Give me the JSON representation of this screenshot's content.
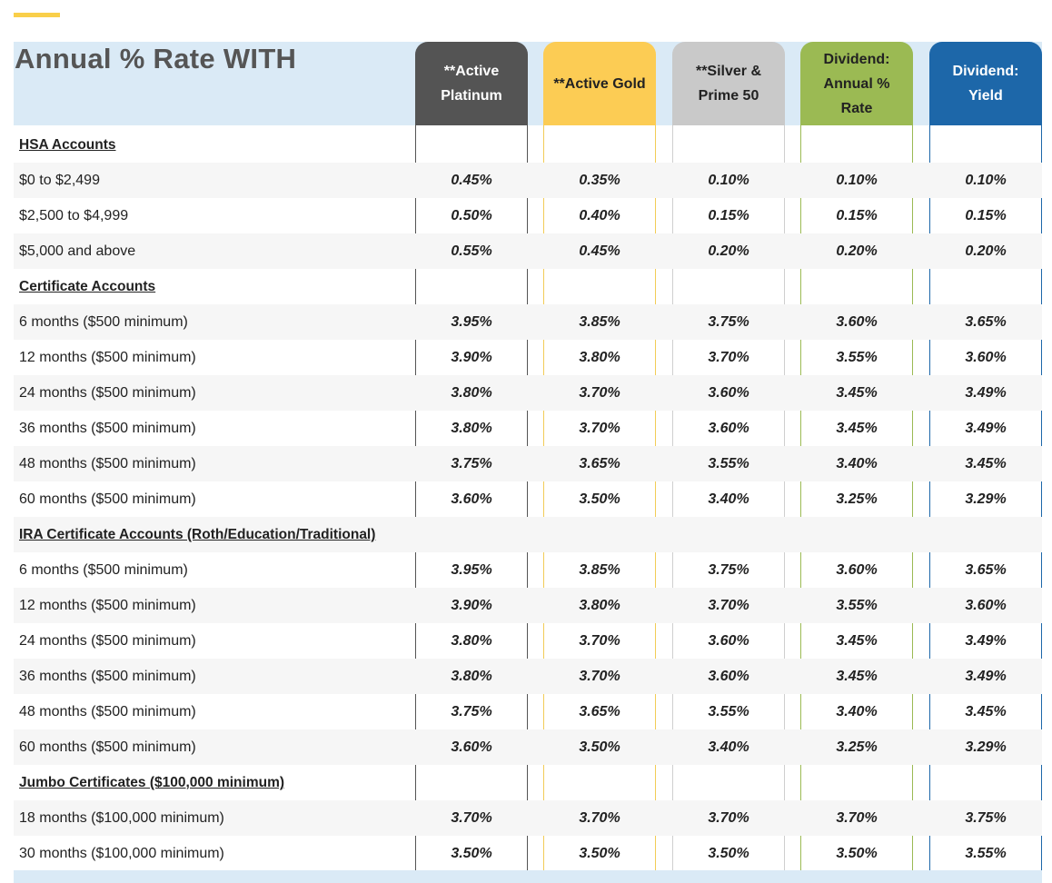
{
  "colors": {
    "accent": "#f9cf4a",
    "header_band": "#daeaf6",
    "title_text": "#555555",
    "platinum": "#545454",
    "gold": "#fccc54",
    "silver": "#c9c9c9",
    "dividend_rate": "#9bba53",
    "dividend_yield": "#1d67a9"
  },
  "title": "Annual % Rate WITH",
  "columns": [
    {
      "label": "**Active Platinum",
      "bg": "#545454",
      "fg": "#ffffff",
      "line": "#545454"
    },
    {
      "label": "**Active Gold",
      "bg": "#fccc54",
      "fg": "#222222",
      "line": "#f2cc57"
    },
    {
      "label": "**Silver & Prime 50",
      "bg": "#c9c9c9",
      "fg": "#222222",
      "line": "#cfcfcf"
    },
    {
      "label": "Dividend: Annual % Rate",
      "bg": "#9bba53",
      "fg": "#222222",
      "line": "#9bba53"
    },
    {
      "label": "Dividend: Yield",
      "bg": "#1d67a9",
      "fg": "#ffffff",
      "line": "#1d67a9"
    }
  ],
  "rows": [
    {
      "label": "HSA Accounts",
      "section": true
    },
    {
      "label": "$0 to $2,499",
      "values": [
        "0.45%",
        "0.35%",
        "0.10%",
        "0.10%",
        "0.10%"
      ]
    },
    {
      "label": "$2,500 to $4,999",
      "values": [
        "0.50%",
        "0.40%",
        "0.15%",
        "0.15%",
        "0.15%"
      ]
    },
    {
      "label": "$5,000 and above",
      "values": [
        "0.55%",
        "0.45%",
        "0.20%",
        "0.20%",
        "0.20%"
      ]
    },
    {
      "label": "Certificate Accounts",
      "section": true
    },
    {
      "label": "6 months ($500 minimum)",
      "values": [
        "3.95%",
        "3.85%",
        "3.75%",
        "3.60%",
        "3.65%"
      ]
    },
    {
      "label": "12 months ($500 minimum)",
      "values": [
        "3.90%",
        "3.80%",
        "3.70%",
        "3.55%",
        "3.60%"
      ]
    },
    {
      "label": "24 months ($500 minimum)",
      "values": [
        "3.80%",
        "3.70%",
        "3.60%",
        "3.45%",
        "3.49%"
      ]
    },
    {
      "label": "36 months ($500 minimum)",
      "values": [
        "3.80%",
        "3.70%",
        "3.60%",
        "3.45%",
        "3.49%"
      ]
    },
    {
      "label": "48 months ($500 minimum)",
      "values": [
        "3.75%",
        "3.65%",
        "3.55%",
        "3.40%",
        "3.45%"
      ]
    },
    {
      "label": "60 months ($500 minimum)",
      "values": [
        "3.60%",
        "3.50%",
        "3.40%",
        "3.25%",
        "3.29%"
      ]
    },
    {
      "label": "IRA Certificate Accounts (Roth/Education/Traditional)",
      "section": true
    },
    {
      "label": "6 months ($500 minimum)",
      "values": [
        "3.95%",
        "3.85%",
        "3.75%",
        "3.60%",
        "3.65%"
      ]
    },
    {
      "label": "12 months ($500 minimum)",
      "values": [
        "3.90%",
        "3.80%",
        "3.70%",
        "3.55%",
        "3.60%"
      ]
    },
    {
      "label": "24 months ($500 minimum)",
      "values": [
        "3.80%",
        "3.70%",
        "3.60%",
        "3.45%",
        "3.49%"
      ]
    },
    {
      "label": "36 months ($500 minimum)",
      "values": [
        "3.80%",
        "3.70%",
        "3.60%",
        "3.45%",
        "3.49%"
      ]
    },
    {
      "label": "48 months ($500 minimum)",
      "values": [
        "3.75%",
        "3.65%",
        "3.55%",
        "3.40%",
        "3.45%"
      ]
    },
    {
      "label": "60 months ($500 minimum)",
      "values": [
        "3.60%",
        "3.50%",
        "3.40%",
        "3.25%",
        "3.29%"
      ]
    },
    {
      "label": "Jumbo Certificates ($100,000 minimum)",
      "section": true
    },
    {
      "label": "18 months ($100,000 minimum)",
      "values": [
        "3.70%",
        "3.70%",
        "3.70%",
        "3.70%",
        "3.75%"
      ]
    },
    {
      "label": "30 months ($100,000 minimum)",
      "values": [
        "3.50%",
        "3.50%",
        "3.50%",
        "3.50%",
        "3.55%"
      ]
    }
  ]
}
